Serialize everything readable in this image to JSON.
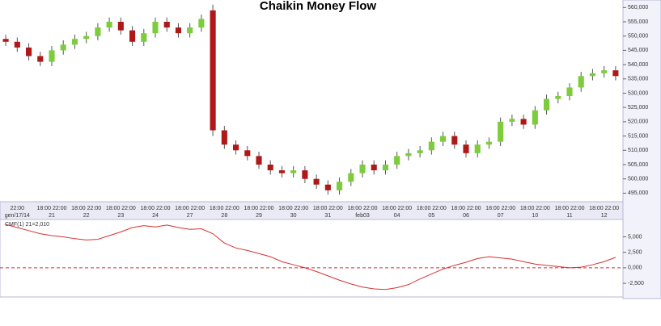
{
  "chart_data": [
    {
      "type": "candlestick",
      "title": "Chaikin Money Flow",
      "categories": [
        null,
        "gen/17/14",
        null,
        null,
        "21",
        null,
        null,
        "22",
        null,
        null,
        "23",
        null,
        null,
        "24",
        null,
        null,
        "27",
        null,
        null,
        "28",
        null,
        null,
        "29",
        null,
        null,
        "30",
        null,
        null,
        "31",
        null,
        null,
        "feb03",
        null,
        null,
        "04",
        null,
        null,
        "05",
        null,
        null,
        "06",
        null,
        null,
        "07",
        null,
        null,
        "10",
        null,
        null,
        "11",
        null,
        null,
        "12",
        null
      ],
      "time_labels": [
        null,
        "22:00",
        null,
        null,
        "18:00 22:00",
        null,
        null,
        "18:00 22:00",
        null,
        null,
        "18:00 22:00",
        null,
        null,
        "18:00 22:00",
        null,
        null,
        "18:00 22:00",
        null,
        null,
        "18:00 22:00",
        null,
        null,
        "18:00 22:00",
        null,
        null,
        "18:00 22:00",
        null,
        null,
        "18:00 22:00",
        null,
        null,
        "18:00 22:00",
        null,
        null,
        "18:00 22:00",
        null,
        null,
        "18:00 22:00",
        null,
        null,
        "18:00 22:00",
        null,
        null,
        "18:00 22:00",
        null,
        null,
        "18:00 22:00",
        null,
        null,
        "18:00 22:00",
        null,
        null,
        "18:00 22:00",
        null
      ],
      "open": [
        549000,
        548000,
        546000,
        543000,
        541000,
        545000,
        547000,
        549000,
        550000,
        553000,
        555000,
        552000,
        548000,
        551000,
        555000,
        553000,
        551000,
        553000,
        559000,
        517000,
        512000,
        510000,
        508000,
        505000,
        503000,
        502000,
        503000,
        500000,
        498000,
        496000,
        499000,
        502000,
        505000,
        503000,
        505000,
        508000,
        509000,
        510000,
        513000,
        515000,
        512000,
        509000,
        512000,
        513000,
        520000,
        521000,
        519000,
        524000,
        528000,
        529000,
        532000,
        536000,
        537000,
        538000
      ],
      "high": [
        550500,
        549500,
        547500,
        544500,
        546500,
        548500,
        550500,
        551500,
        554500,
        556500,
        556500,
        553500,
        552500,
        556500,
        556500,
        554500,
        554500,
        557500,
        561000,
        518500,
        513500,
        511500,
        509500,
        506500,
        504500,
        504500,
        504500,
        501500,
        499500,
        500500,
        503500,
        506500,
        506500,
        506500,
        509500,
        510500,
        511500,
        514500,
        516500,
        516500,
        513500,
        513500,
        514500,
        521500,
        522500,
        522500,
        525500,
        529500,
        530500,
        533500,
        537500,
        538500,
        539500,
        539500
      ],
      "low": [
        546500,
        544500,
        541500,
        539500,
        539500,
        543500,
        545500,
        547500,
        548500,
        551500,
        550500,
        546500,
        546500,
        549500,
        551500,
        549500,
        549500,
        551500,
        515000,
        510500,
        508500,
        506500,
        503500,
        501500,
        500500,
        500500,
        498500,
        496500,
        494500,
        494500,
        497500,
        500500,
        501500,
        501500,
        503500,
        506500,
        507500,
        508500,
        511500,
        510500,
        507500,
        507500,
        510500,
        511500,
        518500,
        517500,
        517500,
        522500,
        526500,
        527500,
        530500,
        534500,
        535500,
        534500
      ],
      "close": [
        548000,
        546000,
        543000,
        541000,
        545000,
        547000,
        549000,
        550000,
        553000,
        555000,
        552000,
        548000,
        551000,
        555000,
        553000,
        551000,
        553000,
        556000,
        517000,
        512000,
        510000,
        508000,
        505000,
        503000,
        502000,
        503000,
        500000,
        498000,
        496000,
        499000,
        502000,
        505000,
        503000,
        505000,
        508000,
        509000,
        510000,
        513000,
        515000,
        512000,
        509000,
        512000,
        513000,
        520000,
        521000,
        519000,
        524000,
        528000,
        529000,
        532000,
        536000,
        537000,
        538000,
        536000
      ],
      "up_color": "#7ccc3c",
      "down_color": "#b01818",
      "ylim": [
        492000,
        561500
      ],
      "yticks": [
        {
          "value": 495000,
          "label": "495,000"
        },
        {
          "value": 500000,
          "label": "500,000"
        },
        {
          "value": 505000,
          "label": "505,000"
        },
        {
          "value": 510000,
          "label": "510,000"
        },
        {
          "value": 515000,
          "label": "515,000"
        },
        {
          "value": 520000,
          "label": "520,000"
        },
        {
          "value": 525000,
          "label": "525,000"
        },
        {
          "value": 530000,
          "label": "530,000"
        },
        {
          "value": 535000,
          "label": "535,000"
        },
        {
          "value": 540000,
          "label": "540,000"
        },
        {
          "value": 545000,
          "label": "545,000"
        },
        {
          "value": 550000,
          "label": "550,000"
        },
        {
          "value": 555000,
          "label": "555,000"
        },
        {
          "value": 560000,
          "label": "560,000"
        }
      ]
    },
    {
      "type": "line",
      "series": [
        {
          "name": "CMF(1) 21=2,010",
          "color": "#d83030",
          "values": [
            7000,
            6500,
            6000,
            5500,
            5200,
            5000,
            4700,
            4500,
            4600,
            5200,
            5800,
            6500,
            6800,
            6600,
            6900,
            6500,
            6200,
            6300,
            5500,
            4000,
            3200,
            2800,
            2300,
            1800,
            1000,
            500,
            0,
            -600,
            -1300,
            -2000,
            -2600,
            -3100,
            -3400,
            -3500,
            -3200,
            -2700,
            -1800,
            -1000,
            -200,
            400,
            900,
            1500,
            1800,
            1600,
            1400,
            1000,
            600,
            400,
            200,
            0,
            100,
            500,
            1000,
            1700
          ]
        }
      ],
      "zero_line": 0,
      "ylim": [
        -4700,
        7800
      ],
      "yticks": [
        {
          "value": -2500,
          "label": "-2,500"
        },
        {
          "value": 0,
          "label": "0,000"
        },
        {
          "value": 2500,
          "label": "2,500"
        },
        {
          "value": 5000,
          "label": "5,000"
        }
      ]
    }
  ]
}
